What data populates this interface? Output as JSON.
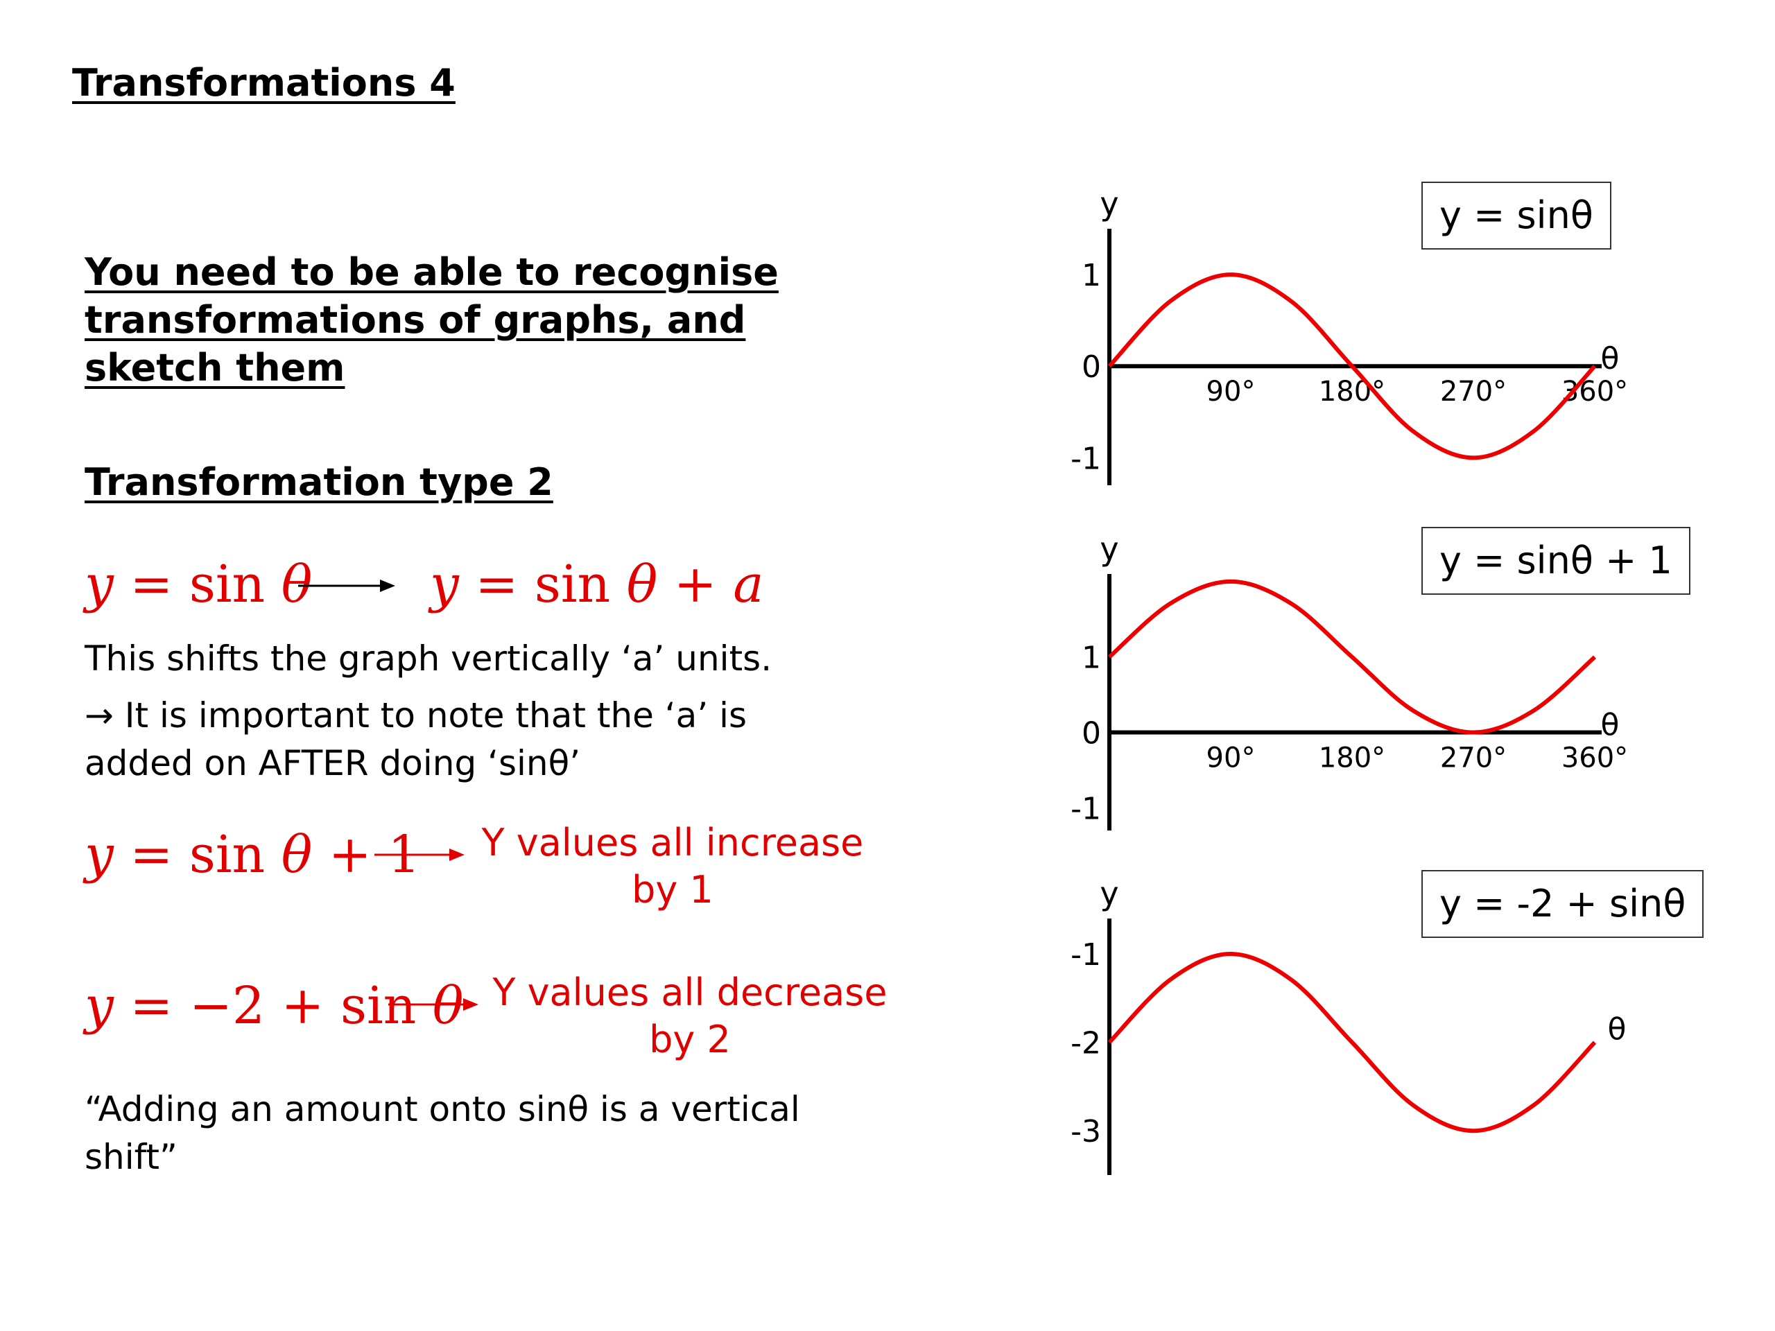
{
  "title": "Transformations 4",
  "intro": "You need to be able to recognise transformations of graphs, and sketch them",
  "subheading": "Transformation type 2",
  "rule": {
    "lhs_y": "y",
    "lhs_eq": " = sin ",
    "lhs_theta": "θ",
    "rhs_y": "y",
    "rhs_eq": " = sin ",
    "rhs_theta": "θ",
    "rhs_plus": " + ",
    "rhs_a": "a"
  },
  "explanation": {
    "line1": "This shifts the graph vertically ‘a’ units.",
    "line2": "→ It is important to note that the ‘a’ is",
    "line3": "added on AFTER doing ‘sinθ’"
  },
  "example1": {
    "y": "y",
    "eq": " = sin ",
    "theta": "θ",
    "rest": " + 1",
    "note_line1": "Y values all increase",
    "note_line2": "by 1"
  },
  "example2": {
    "y": "y",
    "eq": " = −2 + sin ",
    "theta": "θ",
    "note_line1": "Y values all decrease",
    "note_line2": "by 2"
  },
  "quote": {
    "line1": "“Adding an amount onto sinθ is a vertical",
    "line2": "shift”"
  },
  "colors": {
    "curve": "#ee0000",
    "highlight_text": "#e00000",
    "axis": "#000000"
  },
  "chart_data": [
    {
      "type": "line",
      "legend": "y = sinθ",
      "xlabel": "θ",
      "ylabel": "y",
      "x_ticks": [
        "90°",
        "180°",
        "270°",
        "360°"
      ],
      "y_ticks": [
        {
          "value": 1,
          "label": "1"
        },
        {
          "value": 0,
          "label": "0"
        },
        {
          "value": -1,
          "label": "-1"
        }
      ],
      "xlim": [
        0,
        360
      ],
      "ylim": [
        -1.3,
        1.5
      ],
      "x_axis_at": 0,
      "x": [
        0,
        45,
        90,
        135,
        180,
        225,
        270,
        315,
        360
      ],
      "y": [
        0,
        0.707,
        1,
        0.707,
        0,
        -0.707,
        -1,
        -0.707,
        0
      ]
    },
    {
      "type": "line",
      "legend": "y = sinθ + 1",
      "xlabel": "θ",
      "ylabel": "y",
      "x_ticks": [
        "90°",
        "180°",
        "270°",
        "360°"
      ],
      "y_ticks": [
        {
          "value": 1,
          "label": "1"
        },
        {
          "value": 0,
          "label": "0"
        },
        {
          "value": -1,
          "label": "-1"
        }
      ],
      "xlim": [
        0,
        360
      ],
      "ylim": [
        -1.3,
        2.1
      ],
      "x_axis_at": 0,
      "x": [
        0,
        45,
        90,
        135,
        180,
        225,
        270,
        315,
        360
      ],
      "y": [
        1,
        1.707,
        2,
        1.707,
        1,
        0.293,
        0,
        0.293,
        1
      ]
    },
    {
      "type": "line",
      "legend": "y = -2 + sinθ",
      "xlabel": "θ",
      "ylabel": "y",
      "x_ticks": [],
      "y_ticks": [
        {
          "value": -1,
          "label": "-1"
        },
        {
          "value": -2,
          "label": "-2"
        },
        {
          "value": -3,
          "label": "-3"
        }
      ],
      "xlim": [
        0,
        360
      ],
      "ylim": [
        -3.5,
        -0.6
      ],
      "x_axis_at": null,
      "x": [
        0,
        45,
        90,
        135,
        180,
        225,
        270,
        315,
        360
      ],
      "y": [
        -2,
        -1.293,
        -1,
        -1.293,
        -2,
        -2.707,
        -3,
        -2.707,
        -2
      ]
    }
  ]
}
